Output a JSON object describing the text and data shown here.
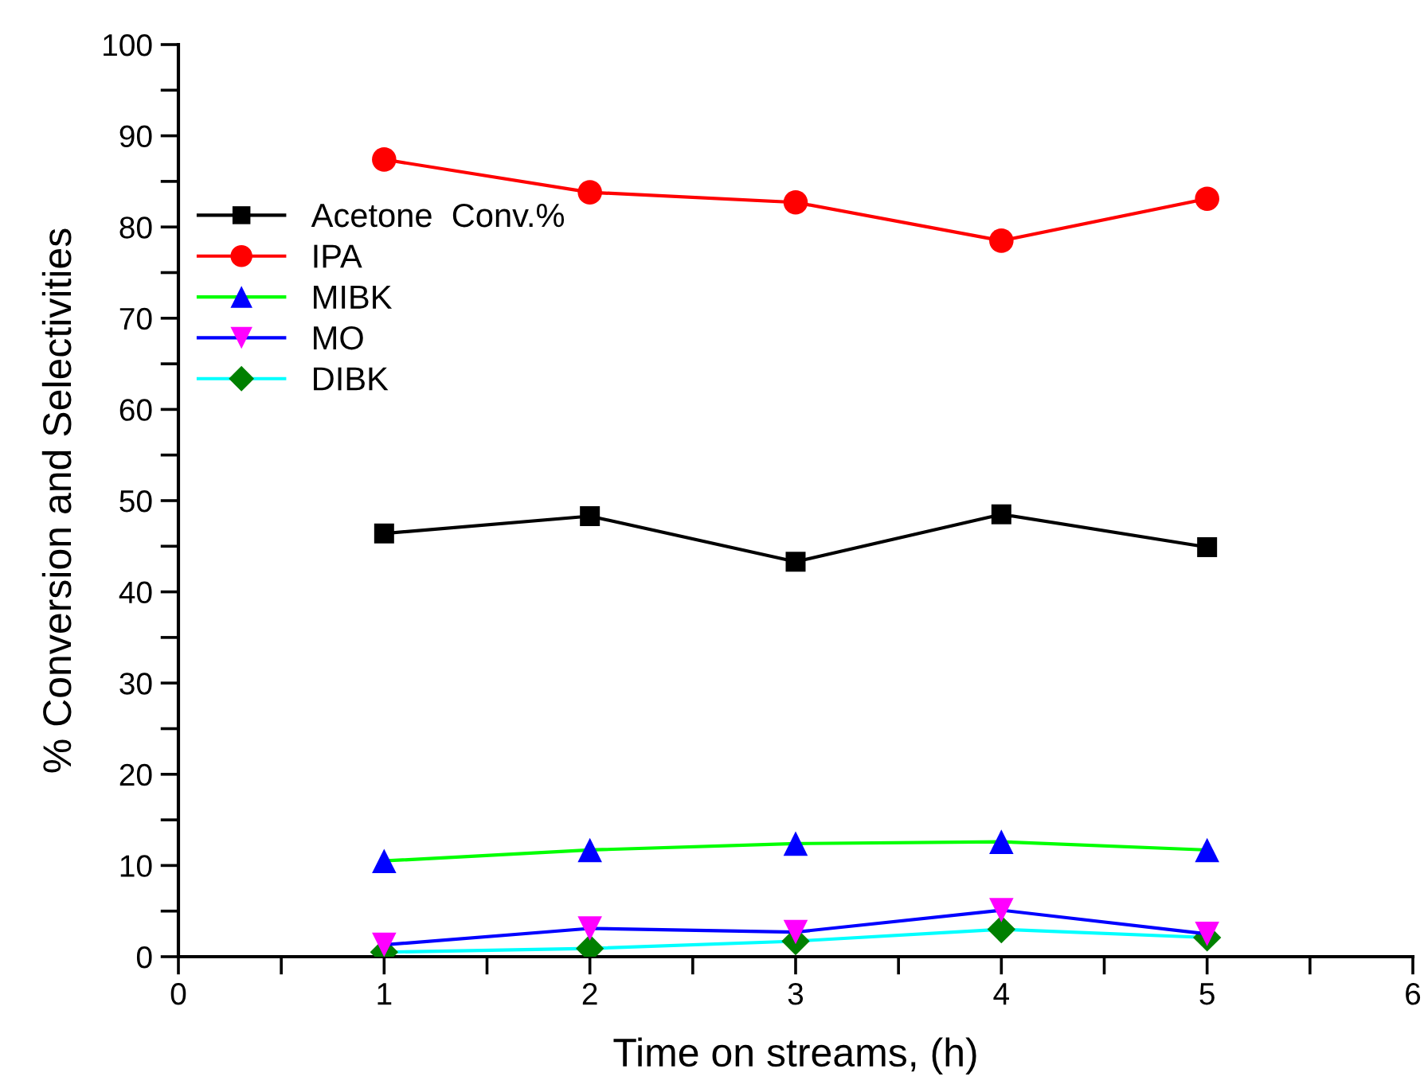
{
  "chart_data": {
    "type": "line",
    "xlabel": "Time on streams, (h)",
    "ylabel": "% Conversion and Selectivities",
    "x": [
      1,
      2,
      3,
      4,
      5
    ],
    "series": [
      {
        "name": "Acetone  Conv.%",
        "color": "#000000",
        "colors": [
          "#000000",
          "#000000",
          "#000000",
          "#000000",
          "#000000"
        ],
        "marker": "square",
        "values": [
          46.4,
          48.3,
          43.3,
          48.5,
          44.9
        ]
      },
      {
        "name": "IPA",
        "color": "#ff0000",
        "colors": [
          "#ff0000",
          "#ff0000",
          "#ff0000",
          "#ff0000",
          "#ff0000"
        ],
        "marker": "circle",
        "values": [
          87.4,
          83.8,
          82.7,
          78.5,
          83.1
        ]
      },
      {
        "name": "MIBK",
        "color": "#00ff00",
        "colors": [
          "#0000ff",
          "#0000ff",
          "#0000ff",
          "#0000ff",
          "#0000ff"
        ],
        "marker": "triangle",
        "values": [
          10.5,
          11.7,
          12.4,
          12.6,
          11.7
        ]
      },
      {
        "name": "MO",
        "color": "#0000ff",
        "colors": [
          "#ff00ff",
          "#ff00ff",
          "#ff00ff",
          "#ff00ff",
          "#ff00ff"
        ],
        "marker": "triangle_down",
        "values": [
          1.3,
          3.1,
          2.7,
          5.1,
          2.5
        ]
      },
      {
        "name": "DIBK",
        "color": "#00ffff",
        "colors": [
          "#008000",
          "#008000",
          "#008000",
          "#008000",
          "#008000"
        ],
        "marker": "diamond",
        "values": [
          0.5,
          0.9,
          1.7,
          3.0,
          2.1
        ]
      }
    ],
    "xlim": [
      0,
      6
    ],
    "xticks": [
      0,
      {
        "value": 0.5,
        "label": null
      },
      1,
      {
        "value": 1.5,
        "label": null
      },
      2,
      {
        "value": 2.5,
        "label": null
      },
      3,
      {
        "value": 3.5,
        "label": null
      },
      4,
      {
        "value": 4.5,
        "label": null
      },
      5,
      {
        "value": 5.5,
        "label": null
      },
      6
    ],
    "ylim": [
      0,
      100
    ],
    "yticks": [
      0,
      {
        "value": 5,
        "label": null
      },
      10,
      {
        "value": 15,
        "label": null
      },
      20,
      {
        "value": 25,
        "label": null
      },
      30,
      {
        "value": 35,
        "label": null
      },
      40,
      {
        "value": 45,
        "label": null
      },
      50,
      {
        "value": 55,
        "label": null
      },
      60,
      {
        "value": 65,
        "label": null
      },
      70,
      {
        "value": 75,
        "label": null
      },
      80,
      {
        "value": 85,
        "label": null
      },
      90,
      {
        "value": 95,
        "label": null
      },
      100
    ],
    "grid": false,
    "legend": "left",
    "line_style": "solid"
  }
}
